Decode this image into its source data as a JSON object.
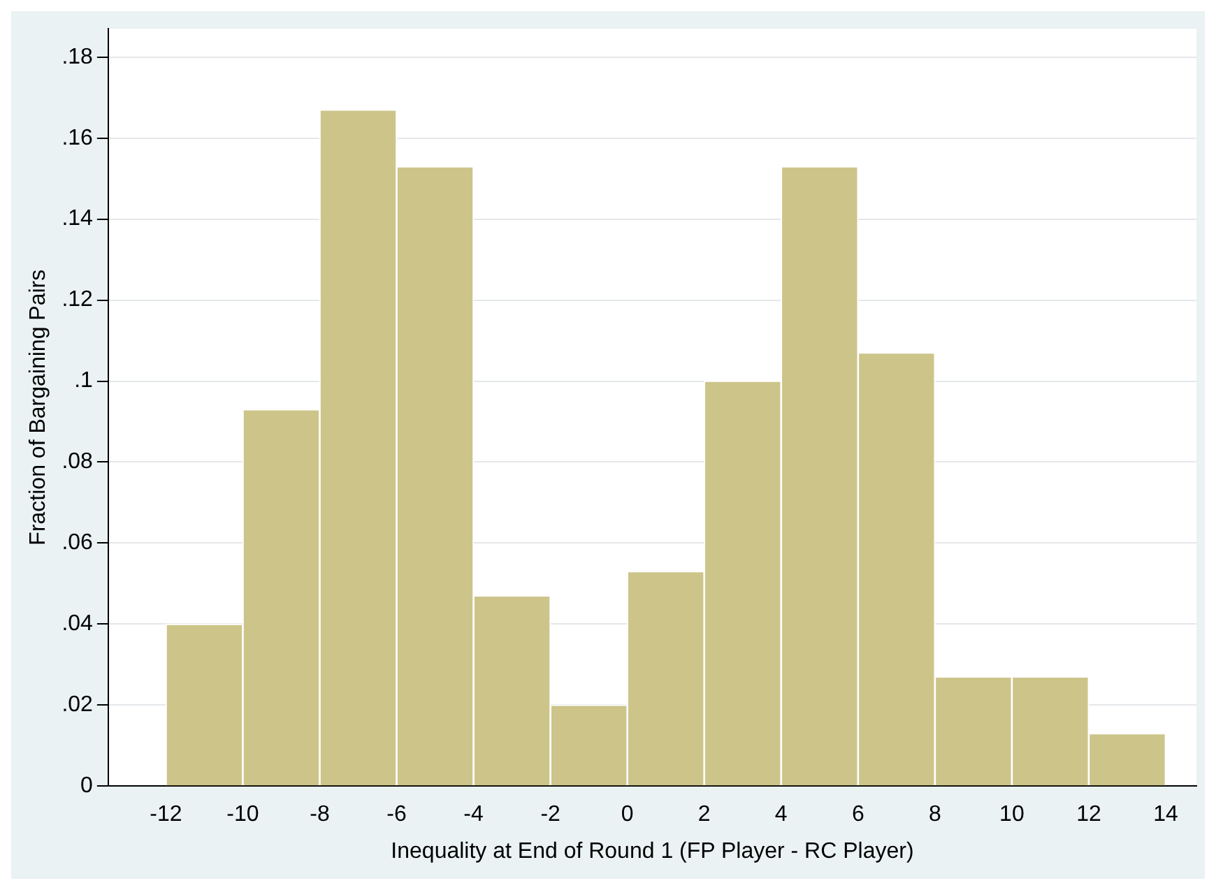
{
  "chart_data": {
    "type": "histogram",
    "xlabel": "Inequality at End of Round 1 (FP Player - RC Player)",
    "ylabel": "Fraction of Bargaining Pairs",
    "bins": [
      -12,
      -10,
      -8,
      -6,
      -4,
      -2,
      0,
      2,
      4,
      6,
      8,
      10,
      12,
      14
    ],
    "values": [
      0.04,
      0.093,
      0.167,
      0.153,
      0.047,
      0.02,
      0.053,
      0.1,
      0.153,
      0.107,
      0.027,
      0.027,
      0.013
    ],
    "color": "#cdc48a",
    "xlim": [
      -13.5,
      14.8
    ],
    "xticks": [
      -12,
      -10,
      -8,
      -6,
      -4,
      -2,
      0,
      2,
      4,
      6,
      8,
      10,
      12,
      14
    ],
    "ylim": [
      0,
      0.187
    ],
    "yticks": [
      {
        "value": 0,
        "label": "0"
      },
      {
        "value": 0.02,
        "label": ".02"
      },
      {
        "value": 0.04,
        "label": ".04"
      },
      {
        "value": 0.06,
        "label": ".06"
      },
      {
        "value": 0.08,
        "label": ".08"
      },
      {
        "value": 0.1,
        "label": ".1"
      },
      {
        "value": 0.12,
        "label": ".12"
      },
      {
        "value": 0.14,
        "label": ".14"
      },
      {
        "value": 0.16,
        "label": ".16"
      },
      {
        "value": 0.18,
        "label": ".18"
      }
    ],
    "grid": "y",
    "legend": false
  }
}
